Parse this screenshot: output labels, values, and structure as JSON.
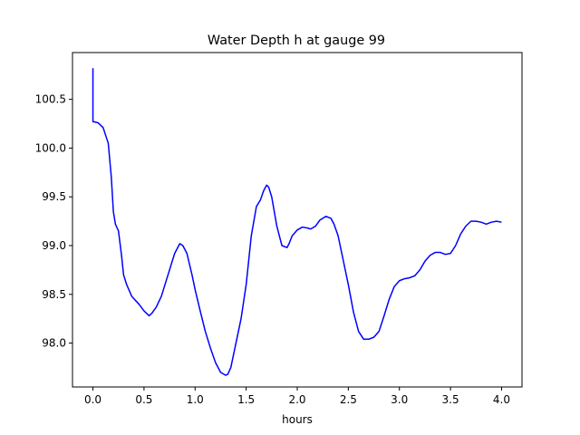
{
  "chart_data": {
    "type": "line",
    "title": "Water Depth h at gauge 99",
    "xlabel": "hours",
    "ylabel": "",
    "xlim": [
      -0.2,
      4.2
    ],
    "ylim": [
      97.55,
      100.98
    ],
    "xticks": [
      0.0,
      0.5,
      1.0,
      1.5,
      2.0,
      2.5,
      3.0,
      3.5,
      4.0
    ],
    "xtick_labels": [
      "0.0",
      "0.5",
      "1.0",
      "1.5",
      "2.0",
      "2.5",
      "3.0",
      "3.5",
      "4.0"
    ],
    "yticks": [
      98.0,
      98.5,
      99.0,
      99.5,
      100.0,
      100.5
    ],
    "ytick_labels": [
      "98.0",
      "98.5",
      "99.0",
      "99.5",
      "100.0",
      "100.5"
    ],
    "grid": false,
    "series": [
      {
        "color": "#0000ff",
        "x": [
          0.0,
          0.0,
          0.01,
          0.05,
          0.1,
          0.15,
          0.18,
          0.2,
          0.22,
          0.25,
          0.28,
          0.3,
          0.33,
          0.38,
          0.45,
          0.5,
          0.55,
          0.58,
          0.62,
          0.67,
          0.72,
          0.8,
          0.85,
          0.88,
          0.92,
          0.97,
          1.0,
          1.05,
          1.1,
          1.15,
          1.2,
          1.25,
          1.3,
          1.32,
          1.35,
          1.4,
          1.45,
          1.5,
          1.55,
          1.6,
          1.64,
          1.67,
          1.7,
          1.72,
          1.75,
          1.8,
          1.85,
          1.9,
          1.92,
          1.95,
          2.0,
          2.05,
          2.1,
          2.13,
          2.18,
          2.22,
          2.28,
          2.33,
          2.36,
          2.4,
          2.45,
          2.5,
          2.55,
          2.6,
          2.65,
          2.7,
          2.75,
          2.8,
          2.85,
          2.9,
          2.95,
          3.0,
          3.05,
          3.1,
          3.15,
          3.2,
          3.25,
          3.3,
          3.35,
          3.4,
          3.45,
          3.5,
          3.55,
          3.6,
          3.65,
          3.7,
          3.75,
          3.8,
          3.85,
          3.9,
          3.95,
          4.0
        ],
        "values": [
          100.82,
          100.27,
          100.27,
          100.26,
          100.21,
          100.05,
          99.7,
          99.35,
          99.22,
          99.15,
          98.9,
          98.7,
          98.6,
          98.48,
          98.4,
          98.33,
          98.28,
          98.31,
          98.37,
          98.48,
          98.65,
          98.92,
          99.02,
          99.0,
          98.92,
          98.7,
          98.55,
          98.33,
          98.12,
          97.95,
          97.8,
          97.7,
          97.67,
          97.68,
          97.75,
          98.0,
          98.25,
          98.6,
          99.1,
          99.4,
          99.47,
          99.56,
          99.62,
          99.6,
          99.5,
          99.2,
          99.0,
          98.98,
          99.02,
          99.1,
          99.16,
          99.19,
          99.18,
          99.17,
          99.2,
          99.26,
          99.3,
          99.28,
          99.22,
          99.1,
          98.85,
          98.6,
          98.32,
          98.12,
          98.04,
          98.04,
          98.06,
          98.12,
          98.28,
          98.45,
          98.58,
          98.64,
          98.66,
          98.67,
          98.69,
          98.75,
          98.84,
          98.9,
          98.93,
          98.93,
          98.91,
          98.92,
          99.0,
          99.12,
          99.2,
          99.25,
          99.25,
          99.24,
          99.22,
          99.24,
          99.25,
          99.24
        ]
      }
    ]
  }
}
